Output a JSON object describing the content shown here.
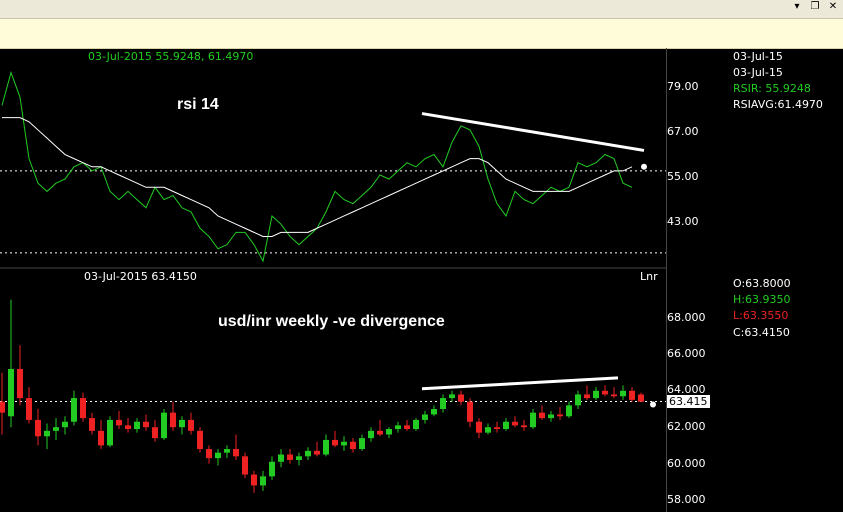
{
  "window": {
    "dropdown_icon": "chevron-down-icon",
    "restore_icon": "restore-window-icon",
    "close_icon": "close-icon"
  },
  "colors": {
    "rsi": "#22cc22",
    "avg": "#ffffff",
    "up": "#22cc22",
    "down": "#ee2222",
    "grid": "#ffffff",
    "divider": "#444444"
  },
  "rsi_panel": {
    "header_date": "03-Jul-2015",
    "header_rsi": "55.9248",
    "header_avg": "61.4970",
    "title": "rsi 14",
    "info": {
      "date1": "03-Jul-15",
      "date2": "03-Jul-15",
      "rsir": "RSIR: 55.9248",
      "rsiavg": "RSIAVG:61.4970"
    },
    "ticks": [
      "79.00",
      "67.00",
      "55.00",
      "43.00"
    ]
  },
  "price_panel": {
    "header_date": "03-Jul-2015",
    "header_close": "63.4150",
    "title": "usd/inr weekly -ve divergence",
    "scale_label": "Lnr",
    "info": {
      "open": "O:63.8000",
      "high": "H:63.9350",
      "low": "L:63.3550",
      "close": "C:63.4150"
    },
    "ticks": [
      "68.000",
      "66.000",
      "64.000",
      "62.000",
      "60.000",
      "58.000"
    ],
    "last_price_tag": "63.415"
  },
  "chart_data": [
    {
      "type": "line",
      "title": "rsi 14",
      "ylim": [
        36.3,
        90
      ],
      "reference_lines": [
        60,
        40
      ],
      "series": [
        {
          "name": "RSIR",
          "values": [
            76,
            84,
            78,
            63,
            57,
            55,
            57,
            58,
            61,
            62,
            60,
            61,
            55,
            53,
            55,
            53,
            51,
            56,
            53,
            54,
            51,
            50,
            46,
            44,
            41,
            42,
            45,
            45,
            42,
            38,
            49,
            47,
            44,
            42,
            44,
            46,
            50,
            55,
            53,
            52,
            54,
            56,
            59,
            58,
            60,
            62,
            61,
            63,
            64,
            61,
            67,
            71,
            70,
            66,
            58,
            52,
            49,
            55,
            53,
            52,
            54,
            56,
            55,
            56,
            62,
            61,
            62,
            64,
            63,
            57,
            56
          ]
        },
        {
          "name": "RSIAVG",
          "values": [
            73,
            73,
            73,
            72,
            70,
            68,
            66,
            64,
            63,
            62,
            61,
            61,
            60,
            59,
            58,
            57,
            56,
            56,
            56,
            55,
            54,
            53,
            52,
            51,
            49,
            48,
            47,
            46,
            45,
            44,
            44,
            45,
            45,
            45,
            45,
            46,
            47,
            48,
            49,
            50,
            51,
            52,
            53,
            54,
            55,
            56,
            57,
            58,
            59,
            60,
            61,
            62,
            63,
            63,
            62,
            60,
            58,
            57,
            56,
            55,
            55,
            55,
            55,
            55,
            56,
            57,
            58,
            59,
            60,
            60,
            61
          ]
        }
      ],
      "trendline": {
        "from": [
          47,
          74
        ],
        "to": [
          68,
          65
        ]
      }
    },
    {
      "type": "candlestick",
      "title": "usd/inr weekly -ve divergence",
      "ylim": [
        57.8,
        69.3
      ],
      "last_close": 63.415,
      "candles": [
        {
          "o": 63.4,
          "h": 65.0,
          "l": 61.6,
          "c": 62.8
        },
        {
          "o": 62.6,
          "h": 69.0,
          "l": 62.0,
          "c": 65.2
        },
        {
          "o": 65.2,
          "h": 66.5,
          "l": 63.2,
          "c": 63.6
        },
        {
          "o": 63.6,
          "h": 64.2,
          "l": 62.2,
          "c": 62.4
        },
        {
          "o": 62.4,
          "h": 63.0,
          "l": 61.0,
          "c": 61.5
        },
        {
          "o": 61.5,
          "h": 62.2,
          "l": 60.8,
          "c": 61.8
        },
        {
          "o": 61.8,
          "h": 62.5,
          "l": 61.3,
          "c": 62.0
        },
        {
          "o": 62.0,
          "h": 62.6,
          "l": 61.6,
          "c": 62.3
        },
        {
          "o": 62.3,
          "h": 64.0,
          "l": 62.1,
          "c": 63.6
        },
        {
          "o": 63.6,
          "h": 63.9,
          "l": 62.3,
          "c": 62.5
        },
        {
          "o": 62.5,
          "h": 62.8,
          "l": 61.6,
          "c": 61.8
        },
        {
          "o": 61.8,
          "h": 62.4,
          "l": 60.8,
          "c": 61.0
        },
        {
          "o": 61.0,
          "h": 62.6,
          "l": 60.9,
          "c": 62.4
        },
        {
          "o": 62.4,
          "h": 62.9,
          "l": 61.9,
          "c": 62.1
        },
        {
          "o": 62.1,
          "h": 62.5,
          "l": 61.7,
          "c": 61.9
        },
        {
          "o": 61.9,
          "h": 62.5,
          "l": 61.7,
          "c": 62.3
        },
        {
          "o": 62.3,
          "h": 62.7,
          "l": 61.8,
          "c": 62.0
        },
        {
          "o": 62.0,
          "h": 62.4,
          "l": 61.2,
          "c": 61.4
        },
        {
          "o": 61.4,
          "h": 63.0,
          "l": 61.3,
          "c": 62.8
        },
        {
          "o": 62.8,
          "h": 63.4,
          "l": 61.8,
          "c": 62.0
        },
        {
          "o": 62.0,
          "h": 62.6,
          "l": 61.6,
          "c": 62.4
        },
        {
          "o": 62.4,
          "h": 62.8,
          "l": 61.6,
          "c": 61.8
        },
        {
          "o": 61.8,
          "h": 62.0,
          "l": 60.6,
          "c": 60.8
        },
        {
          "o": 60.8,
          "h": 61.0,
          "l": 60.0,
          "c": 60.3
        },
        {
          "o": 60.3,
          "h": 60.8,
          "l": 59.9,
          "c": 60.6
        },
        {
          "o": 60.6,
          "h": 61.0,
          "l": 60.3,
          "c": 60.8
        },
        {
          "o": 60.8,
          "h": 61.6,
          "l": 60.2,
          "c": 60.4
        },
        {
          "o": 60.4,
          "h": 60.6,
          "l": 59.2,
          "c": 59.4
        },
        {
          "o": 59.4,
          "h": 59.6,
          "l": 58.4,
          "c": 58.8
        },
        {
          "o": 58.8,
          "h": 59.6,
          "l": 58.5,
          "c": 59.3
        },
        {
          "o": 59.3,
          "h": 60.4,
          "l": 59.1,
          "c": 60.1
        },
        {
          "o": 60.1,
          "h": 60.8,
          "l": 59.8,
          "c": 60.5
        },
        {
          "o": 60.5,
          "h": 60.8,
          "l": 60.0,
          "c": 60.2
        },
        {
          "o": 60.2,
          "h": 60.6,
          "l": 59.9,
          "c": 60.4
        },
        {
          "o": 60.4,
          "h": 60.9,
          "l": 60.2,
          "c": 60.7
        },
        {
          "o": 60.7,
          "h": 61.2,
          "l": 60.4,
          "c": 60.5
        },
        {
          "o": 60.5,
          "h": 61.6,
          "l": 60.4,
          "c": 61.3
        },
        {
          "o": 61.3,
          "h": 61.8,
          "l": 60.9,
          "c": 61.0
        },
        {
          "o": 61.0,
          "h": 61.5,
          "l": 60.7,
          "c": 61.2
        },
        {
          "o": 61.2,
          "h": 61.4,
          "l": 60.6,
          "c": 60.8
        },
        {
          "o": 60.8,
          "h": 61.6,
          "l": 60.7,
          "c": 61.4
        },
        {
          "o": 61.4,
          "h": 62.0,
          "l": 61.2,
          "c": 61.8
        },
        {
          "o": 61.8,
          "h": 62.4,
          "l": 61.5,
          "c": 61.6
        },
        {
          "o": 61.6,
          "h": 62.0,
          "l": 61.4,
          "c": 61.9
        },
        {
          "o": 61.9,
          "h": 62.3,
          "l": 61.7,
          "c": 62.1
        },
        {
          "o": 62.1,
          "h": 62.4,
          "l": 61.8,
          "c": 61.9
        },
        {
          "o": 61.9,
          "h": 62.5,
          "l": 61.8,
          "c": 62.4
        },
        {
          "o": 62.4,
          "h": 62.9,
          "l": 62.2,
          "c": 62.7
        },
        {
          "o": 62.7,
          "h": 63.2,
          "l": 62.6,
          "c": 63.0
        },
        {
          "o": 63.0,
          "h": 63.8,
          "l": 62.8,
          "c": 63.6
        },
        {
          "o": 63.6,
          "h": 64.0,
          "l": 63.4,
          "c": 63.8
        },
        {
          "o": 63.8,
          "h": 64.0,
          "l": 63.2,
          "c": 63.4
        },
        {
          "o": 63.4,
          "h": 63.6,
          "l": 62.0,
          "c": 62.3
        },
        {
          "o": 62.3,
          "h": 62.5,
          "l": 61.4,
          "c": 61.7
        },
        {
          "o": 61.7,
          "h": 62.2,
          "l": 61.6,
          "c": 62.0
        },
        {
          "o": 62.0,
          "h": 62.3,
          "l": 61.7,
          "c": 61.9
        },
        {
          "o": 61.9,
          "h": 62.5,
          "l": 61.8,
          "c": 62.3
        },
        {
          "o": 62.3,
          "h": 62.6,
          "l": 62.0,
          "c": 62.1
        },
        {
          "o": 62.1,
          "h": 62.4,
          "l": 61.8,
          "c": 62.0
        },
        {
          "o": 62.0,
          "h": 63.0,
          "l": 61.9,
          "c": 62.8
        },
        {
          "o": 62.8,
          "h": 63.2,
          "l": 62.4,
          "c": 62.5
        },
        {
          "o": 62.5,
          "h": 62.9,
          "l": 62.3,
          "c": 62.7
        },
        {
          "o": 62.7,
          "h": 63.1,
          "l": 62.4,
          "c": 62.6
        },
        {
          "o": 62.6,
          "h": 63.4,
          "l": 62.5,
          "c": 63.2
        },
        {
          "o": 63.2,
          "h": 64.0,
          "l": 63.0,
          "c": 63.8
        },
        {
          "o": 63.8,
          "h": 64.3,
          "l": 63.5,
          "c": 63.6
        },
        {
          "o": 63.6,
          "h": 64.2,
          "l": 63.5,
          "c": 64.0
        },
        {
          "o": 64.0,
          "h": 64.3,
          "l": 63.7,
          "c": 63.8
        },
        {
          "o": 63.8,
          "h": 64.2,
          "l": 63.6,
          "c": 63.7
        },
        {
          "o": 63.7,
          "h": 64.3,
          "l": 63.5,
          "c": 64.0
        },
        {
          "o": 64.0,
          "h": 64.2,
          "l": 63.4,
          "c": 63.5
        },
        {
          "o": 63.8,
          "h": 63.9,
          "l": 63.4,
          "c": 63.4
        }
      ],
      "trendline": {
        "from": [
          47,
          64.0
        ],
        "to": [
          68,
          64.6
        ]
      }
    }
  ]
}
